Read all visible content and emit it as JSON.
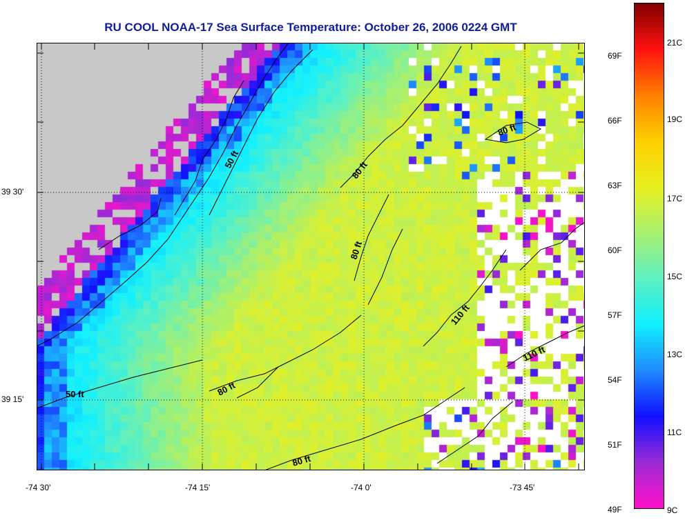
{
  "title": "RU COOL  NOAA-17  Sea Surface Temperature:  October 26, 2006 0224 GMT",
  "x_ticks": [
    {
      "label": "-74 30'",
      "value": -74.5
    },
    {
      "label": "-74 15'",
      "value": -74.25
    },
    {
      "label": "-74 0'",
      "value": -74.0
    },
    {
      "label": "-73 45'",
      "value": -73.75
    }
  ],
  "y_ticks": [
    {
      "label": "39 30'",
      "value": 39.5
    },
    {
      "label": "39 15'",
      "value": 39.25
    }
  ],
  "contour_labels": [
    {
      "text": "50 ft",
      "id": "contour-label-50ft-north"
    },
    {
      "text": "50 ft",
      "id": "contour-label-50ft-south"
    },
    {
      "text": "80 ft",
      "id": "contour-label-80ft-1"
    },
    {
      "text": "80 ft",
      "id": "contour-label-80ft-2"
    },
    {
      "text": "80 ft",
      "id": "contour-label-80ft-3"
    },
    {
      "text": "80 ft",
      "id": "contour-label-80ft-4"
    },
    {
      "text": "80 ft",
      "id": "contour-label-80ft-5"
    },
    {
      "text": "110 ft",
      "id": "contour-label-110ft-1"
    },
    {
      "text": "110 ft",
      "id": "contour-label-110ft-2"
    }
  ],
  "colorbar": {
    "fahrenheit": [
      "69F",
      "66F",
      "63F",
      "60F",
      "57F",
      "54F",
      "51F",
      "49F"
    ],
    "celsius": [
      "21C",
      "19C",
      "17C",
      "15C",
      "13C",
      "11C",
      "9C"
    ],
    "min_c": 9,
    "max_c": 22.5,
    "colors": [
      "#ff10c8",
      "#9b2bd6",
      "#1010ff",
      "#1f8bff",
      "#10f0ff",
      "#5ef0c0",
      "#a8f070",
      "#e8f020",
      "#ffd000",
      "#ff8000",
      "#ff1010",
      "#800000"
    ]
  },
  "land_color": "#c8c8c8",
  "cloud_color": "#ffffff"
}
